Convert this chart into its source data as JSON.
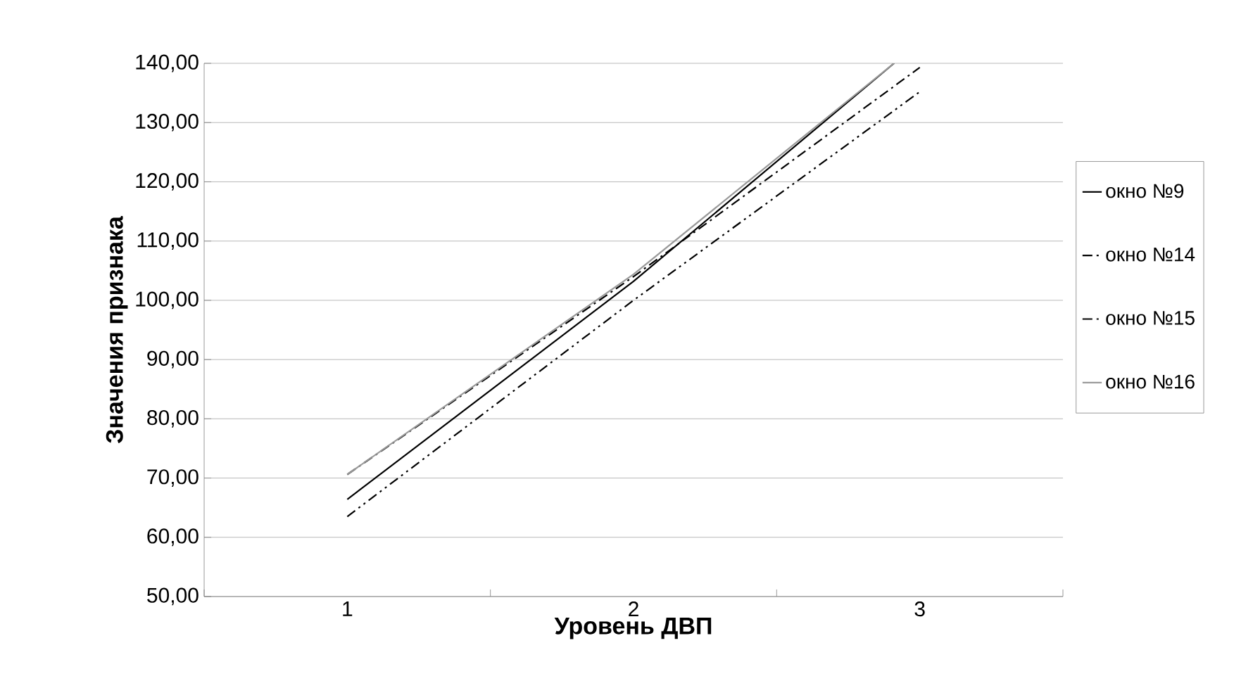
{
  "chart_data": {
    "type": "line",
    "xlabel": "Уровень ДВП",
    "ylabel": "Значения признака",
    "x": [
      1,
      2,
      3
    ],
    "xlim": [
      0.5,
      3.5
    ],
    "xticks": [
      1,
      2,
      3
    ],
    "series": [
      {
        "name": "окно №9",
        "color": "#000000",
        "line_style": "solid",
        "x": [
          1,
          2,
          2.91
        ],
        "values": [
          66.4,
          103.2,
          140
        ]
      },
      {
        "name": "окно №14",
        "color": "#000000",
        "line_style": "dashdotdot",
        "values": [
          63.5,
          100.0,
          135.2
        ]
      },
      {
        "name": "окно №15",
        "color": "#000000",
        "line_style": "dashdot",
        "values": [
          70.6,
          104.0,
          139.3
        ]
      },
      {
        "name": "окно №16",
        "color": "#999999",
        "line_style": "solid",
        "x": [
          1,
          2,
          2.91
        ],
        "values": [
          70.6,
          104.4,
          140
        ]
      }
    ],
    "ylim": [
      50,
      140
    ],
    "yticks": [
      {
        "value": 50,
        "label": "50,00"
      },
      {
        "value": 60,
        "label": "60,00"
      },
      {
        "value": 70,
        "label": "70,00"
      },
      {
        "value": 80,
        "label": "80,00"
      },
      {
        "value": 90,
        "label": "90,00"
      },
      {
        "value": 100,
        "label": "100,00"
      },
      {
        "value": 110,
        "label": "110,00"
      },
      {
        "value": 120,
        "label": "120,00"
      },
      {
        "value": 130,
        "label": "130,00"
      },
      {
        "value": 140,
        "label": "140,00"
      }
    ],
    "grid": "y",
    "legend": "right",
    "marker": "none"
  }
}
